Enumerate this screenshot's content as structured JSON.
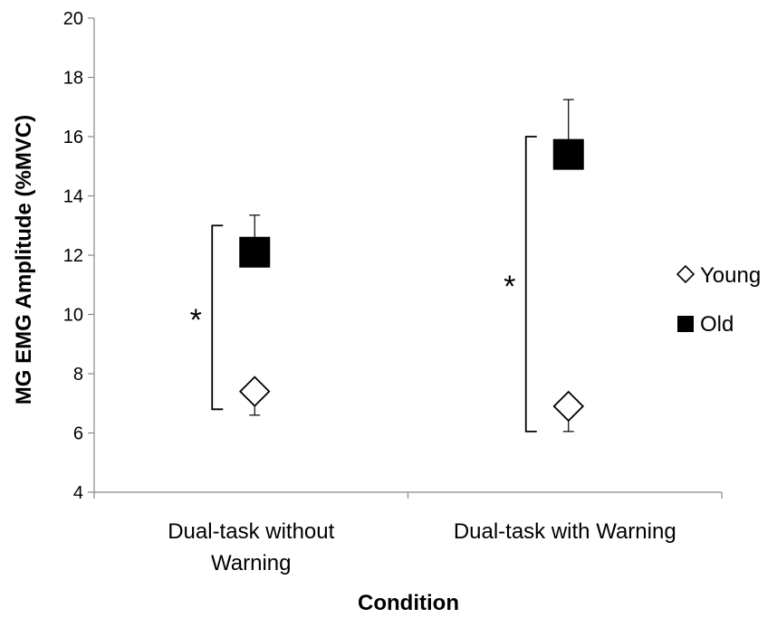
{
  "chart_data": {
    "type": "scatter",
    "ylabel": "MG EMG Amplitude (%MVC)",
    "xlabel": "Condition",
    "ylim": [
      4,
      20
    ],
    "yticks": [
      4,
      6,
      8,
      10,
      12,
      14,
      16,
      18,
      20
    ],
    "categories": [
      [
        "Dual-task without",
        "Warning"
      ],
      [
        "Dual-task with Warning"
      ]
    ],
    "series": [
      {
        "name": "Young",
        "marker": "diamond-open",
        "color": "#000000",
        "values": [
          7.4,
          6.9
        ],
        "error_low": [
          0.8,
          0.85
        ]
      },
      {
        "name": "Old",
        "marker": "square-filled",
        "color": "#000000",
        "values": [
          12.1,
          15.4
        ],
        "error_high": [
          1.25,
          1.85
        ]
      }
    ],
    "significance": [
      {
        "label": "*",
        "category_index": 0,
        "from": 6.8,
        "to": 13.0
      },
      {
        "label": "*",
        "category_index": 1,
        "from": 6.05,
        "to": 16.0
      }
    ],
    "legend": {
      "placement": "right",
      "entries": [
        {
          "symbol": "◇",
          "label": "Young"
        },
        {
          "symbol": "■",
          "label": "Old"
        }
      ]
    }
  }
}
